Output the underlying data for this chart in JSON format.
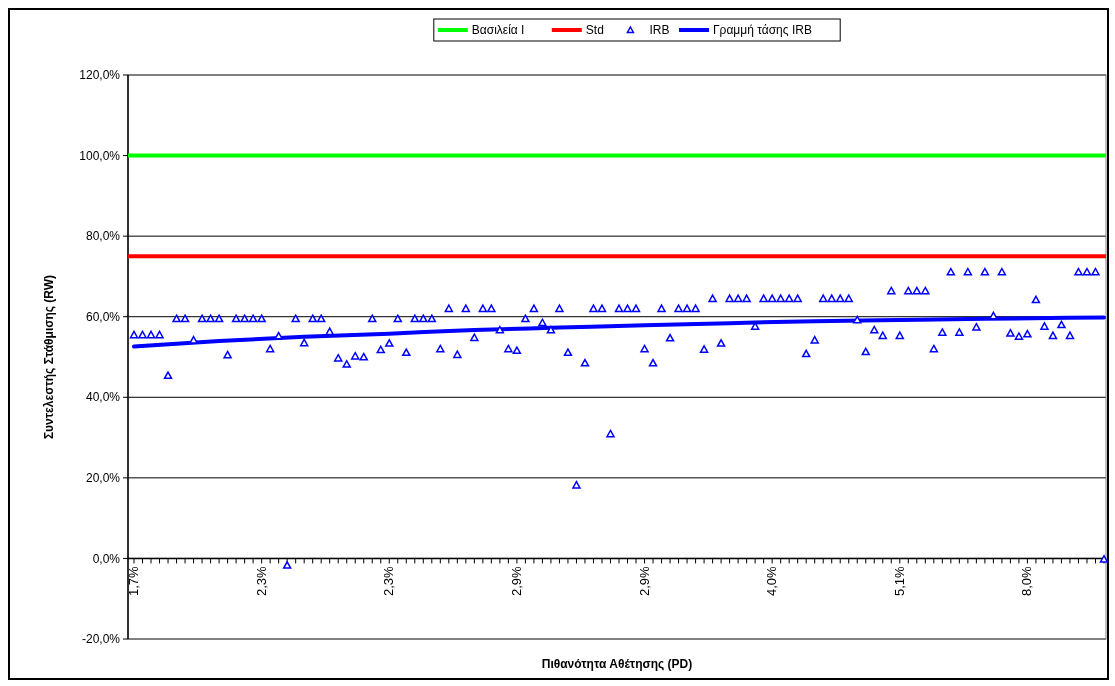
{
  "chart_data": {
    "type": "scatter",
    "xlabel": "Πιθανότητα Αθέτησης (PD)",
    "ylabel": "Συντελεστής Στάθμισης (RW)",
    "categories": [
      "1,7%",
      null,
      null,
      null,
      null,
      null,
      null,
      null,
      null,
      null,
      null,
      null,
      null,
      null,
      null,
      "2,3%",
      null,
      null,
      null,
      null,
      null,
      null,
      null,
      null,
      null,
      null,
      null,
      null,
      null,
      null,
      "2,3%",
      null,
      null,
      null,
      null,
      null,
      null,
      null,
      null,
      null,
      null,
      null,
      null,
      null,
      null,
      "2,9%",
      null,
      null,
      null,
      null,
      null,
      null,
      null,
      null,
      null,
      null,
      null,
      null,
      null,
      null,
      "2,9%",
      null,
      null,
      null,
      null,
      null,
      null,
      null,
      null,
      null,
      null,
      null,
      null,
      null,
      null,
      "4,0%",
      null,
      null,
      null,
      null,
      null,
      null,
      null,
      null,
      null,
      null,
      null,
      null,
      null,
      null,
      "5,1%",
      null,
      null,
      null,
      null,
      null,
      null,
      null,
      null,
      null,
      null,
      null,
      null,
      null,
      null,
      "8,0%",
      null,
      null,
      null,
      null,
      null,
      null,
      null,
      null,
      null
    ],
    "ylim": [
      -20,
      120
    ],
    "yticks": [
      {
        "value": -20,
        "label": "-20,0%"
      },
      {
        "value": 0,
        "label": "0,0%"
      },
      {
        "value": 20,
        "label": "20,0%"
      },
      {
        "value": 40,
        "label": "40,0%"
      },
      {
        "value": 60,
        "label": "60,0%"
      },
      {
        "value": 80,
        "label": "80,0%"
      },
      {
        "value": 100,
        "label": "100,0%"
      },
      {
        "value": 120,
        "label": "120,0%"
      }
    ],
    "grid": "y",
    "legend": "top",
    "ref_lines": [
      {
        "axis": "y",
        "value": 100,
        "label": "Βασιλεία I",
        "color": "#00ff00"
      },
      {
        "axis": "y",
        "value": 75,
        "label": "Std",
        "color": "#ff0000"
      }
    ],
    "series": [
      {
        "name": "IRB",
        "marker": "triangle",
        "color": "#0000ff",
        "values": [
          55.5,
          55.5,
          55.5,
          55.5,
          45.4,
          59.5,
          59.5,
          54.2,
          59.5,
          59.5,
          59.5,
          50.5,
          59.5,
          59.5,
          59.5,
          59.5,
          52.0,
          55.2,
          -1.7,
          59.5,
          53.5,
          59.5,
          59.5,
          56.3,
          49.7,
          48.2,
          50.2,
          50.0,
          59.5,
          51.8,
          53.4,
          59.5,
          51.1,
          59.5,
          59.5,
          59.5,
          52.0,
          62,
          50.6,
          62,
          54.8,
          62,
          62,
          56.7,
          52.0,
          51.6,
          59.5,
          62,
          58.5,
          56.7,
          62,
          51.1,
          18.2,
          48.5,
          62,
          62,
          30.9,
          62,
          62,
          62,
          52.0,
          48.5,
          62,
          54.7,
          62,
          62,
          62,
          51.9,
          64.5,
          53.4,
          64.5,
          64.5,
          64.5,
          57.6,
          64.5,
          64.5,
          64.5,
          64.5,
          64.5,
          50.8,
          54.2,
          64.5,
          64.5,
          64.5,
          64.5,
          59.2,
          51.3,
          56.7,
          55.3,
          66.4,
          55.3,
          66.4,
          66.4,
          66.4,
          52.0,
          56.1,
          71.1,
          56.1,
          71.1,
          57.4,
          71.1,
          60.2,
          71.1,
          55.9,
          55.1,
          55.7,
          64.2,
          57.6,
          55.3,
          58.0,
          55.3,
          71.1,
          71.1,
          71.1,
          -0.2
        ]
      },
      {
        "name": "Γραμμή τάσης IRB",
        "type": "line",
        "color": "#0000ff",
        "line_style": "solid",
        "values": [
          52.6,
          null,
          null,
          null,
          null,
          null,
          null,
          null,
          null,
          null,
          54.0,
          null,
          null,
          null,
          null,
          null,
          null,
          null,
          null,
          null,
          55.0,
          null,
          null,
          null,
          null,
          null,
          null,
          null,
          null,
          null,
          55.8,
          null,
          null,
          null,
          null,
          null,
          null,
          null,
          null,
          null,
          56.7,
          null,
          null,
          null,
          null,
          null,
          null,
          null,
          null,
          null,
          57.3,
          null,
          null,
          null,
          null,
          null,
          null,
          null,
          null,
          null,
          57.9,
          null,
          null,
          null,
          null,
          null,
          null,
          null,
          null,
          null,
          58.4,
          null,
          null,
          null,
          null,
          null,
          null,
          null,
          null,
          null,
          58.9,
          null,
          null,
          null,
          null,
          null,
          null,
          null,
          null,
          null,
          59.2,
          null,
          null,
          null,
          null,
          null,
          null,
          null,
          null,
          null,
          59.5,
          null,
          null,
          null,
          null,
          null,
          null,
          null,
          null,
          null,
          null,
          null,
          null,
          null,
          59.8
        ]
      }
    ]
  }
}
